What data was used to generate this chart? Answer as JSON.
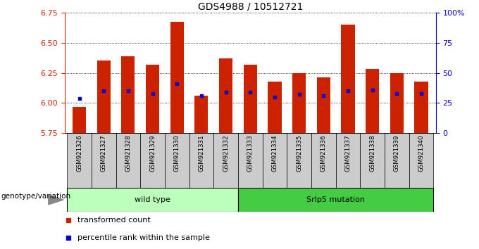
{
  "title": "GDS4988 / 10512721",
  "samples": [
    "GSM921326",
    "GSM921327",
    "GSM921328",
    "GSM921329",
    "GSM921330",
    "GSM921331",
    "GSM921332",
    "GSM921333",
    "GSM921334",
    "GSM921335",
    "GSM921336",
    "GSM921337",
    "GSM921338",
    "GSM921339",
    "GSM921340"
  ],
  "transformed_counts": [
    5.97,
    6.35,
    6.39,
    6.32,
    6.67,
    6.06,
    6.37,
    6.32,
    6.18,
    6.25,
    6.21,
    6.65,
    6.28,
    6.25,
    6.18
  ],
  "percentile_ranks": [
    6.04,
    6.1,
    6.1,
    6.08,
    6.16,
    6.06,
    6.09,
    6.09,
    6.05,
    6.07,
    6.06,
    6.1,
    6.11,
    6.08,
    6.08
  ],
  "ylim": [
    5.75,
    6.75
  ],
  "yticks": [
    5.75,
    6.0,
    6.25,
    6.5,
    6.75
  ],
  "right_yticks": [
    0,
    25,
    50,
    75,
    100
  ],
  "right_ytick_labels": [
    "0",
    "25",
    "50",
    "75",
    "100%"
  ],
  "bar_color": "#cc2200",
  "percentile_color": "#0000cc",
  "bar_width": 0.55,
  "wild_type_samples": 7,
  "group1_label": "wild type",
  "group2_label": "Srlp5 mutation",
  "group1_color": "#bbffbb",
  "group2_color": "#44cc44",
  "xlabel_left": "genotype/variation",
  "legend1": "transformed count",
  "legend2": "percentile rank within the sample",
  "title_fontsize": 10,
  "axis_label_color_left": "#cc2200",
  "axis_label_color_right": "#0000cc",
  "tick_fontsize": 8,
  "bg_color": "#cccccc"
}
